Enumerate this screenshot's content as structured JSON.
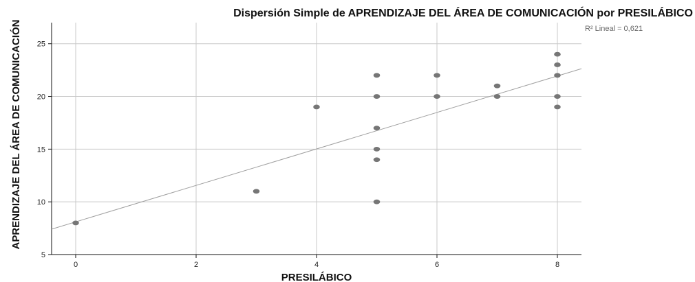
{
  "chart_data": {
    "type": "scatter",
    "title": "Dispersión Simple de APRENDIZAJE DEL ÁREA DE COMUNICACIÓN  por PRESILÁBICO",
    "xlabel": "PRESILÁBICO",
    "ylabel": "APRENDIZAJE DEL ÁREA DE COMUNICACIÓN",
    "xlim": [
      -0.4,
      8.4
    ],
    "ylim": [
      5,
      27
    ],
    "x_ticks": [
      0,
      2,
      4,
      6,
      8
    ],
    "y_ticks": [
      5,
      10,
      15,
      20,
      25
    ],
    "x_tick_labels": [
      "0",
      "2",
      "4",
      "6",
      "8"
    ],
    "y_tick_labels": [
      "5",
      "10",
      "15",
      "20",
      "25"
    ],
    "grid": {
      "x": true,
      "y": true
    },
    "series": [
      {
        "x": [
          0,
          3,
          4,
          5,
          5,
          5,
          5,
          5,
          5,
          6,
          6,
          7,
          7,
          8,
          8,
          8,
          8,
          8
        ],
        "y": [
          8,
          11,
          19,
          10,
          14,
          15,
          17,
          20,
          22,
          20,
          22,
          20,
          21,
          19,
          20,
          22,
          23,
          24
        ],
        "color": "#767676"
      }
    ],
    "fit_line": {
      "type": "linear",
      "intercept": 8.1,
      "slope": 1.73,
      "x_range": [
        -0.4,
        8.4
      ],
      "color": "#a0a0a0"
    },
    "annotation": "R² Lineal = 0,621"
  }
}
